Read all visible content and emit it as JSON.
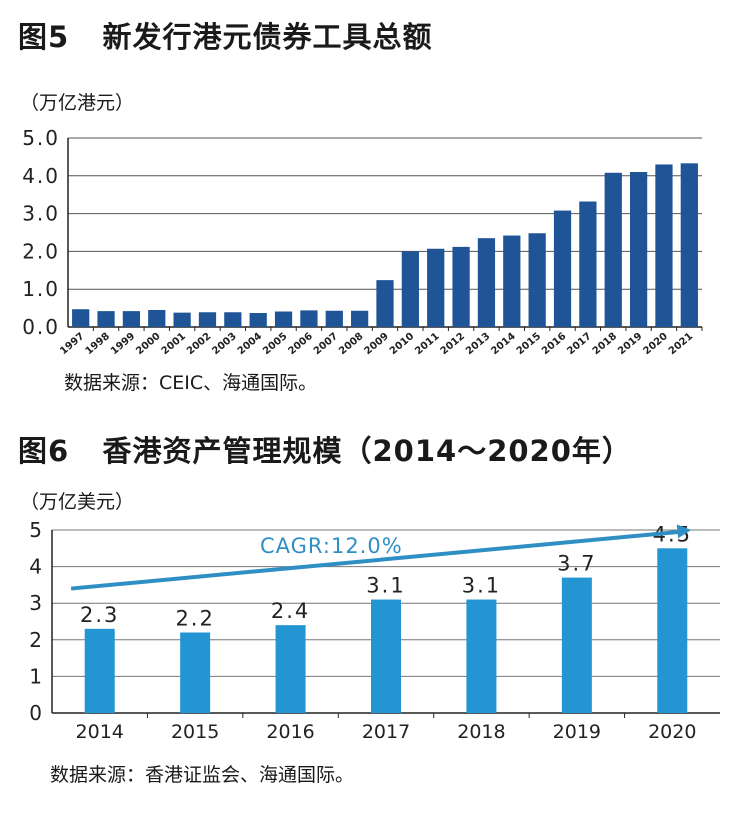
{
  "figures": [
    {
      "number": "图5",
      "title": "新发行港元债券工具总额",
      "unit": "（万亿港元）",
      "source": "数据来源：CEIC、海通国际。"
    },
    {
      "number": "图6",
      "title": "香港资产管理规模（2014～2020年）",
      "unit": "（万亿美元）",
      "source": "数据来源：香港证监会、海通国际。"
    }
  ],
  "chart_data": [
    {
      "type": "bar",
      "title": "新发行港元债券工具总额",
      "ylabel": "万亿港元",
      "categories": [
        "1997",
        "1998",
        "1999",
        "2000",
        "2001",
        "2002",
        "2003",
        "2004",
        "2005",
        "2006",
        "2007",
        "2008",
        "2009",
        "2010",
        "2011",
        "2012",
        "2013",
        "2014",
        "2015",
        "2016",
        "2017",
        "2018",
        "2019",
        "2020",
        "2021"
      ],
      "values": [
        0.47,
        0.42,
        0.42,
        0.45,
        0.38,
        0.39,
        0.39,
        0.37,
        0.41,
        0.44,
        0.43,
        0.43,
        1.24,
        2.0,
        2.07,
        2.12,
        2.35,
        2.42,
        2.48,
        3.08,
        3.32,
        4.08,
        4.1,
        4.3,
        4.33
      ],
      "yticks": [
        "0.0",
        "1.0",
        "2.0",
        "3.0",
        "4.0",
        "5.0"
      ],
      "ylim": [
        0,
        5
      ],
      "grid": true,
      "color": "#1f5597"
    },
    {
      "type": "bar",
      "title": "香港资产管理规模（2014～2020年）",
      "ylabel": "万亿美元",
      "categories": [
        "2014",
        "2015",
        "2016",
        "2017",
        "2018",
        "2019",
        "2020"
      ],
      "values": [
        2.3,
        2.2,
        2.4,
        3.1,
        3.1,
        3.7,
        4.5
      ],
      "data_labels": [
        "2.3",
        "2.2",
        "2.4",
        "3.1",
        "3.1",
        "3.7",
        "4.5"
      ],
      "yticks": [
        "0",
        "1",
        "2",
        "3",
        "4",
        "5"
      ],
      "ylim": [
        0,
        5
      ],
      "grid": true,
      "color": "#2495d3",
      "annotation": {
        "text": "CAGR:12.0%",
        "arrow_from": [
          -0.3,
          3.4
        ],
        "arrow_to": [
          6.2,
          5.0
        ],
        "color": "#2f8fc4"
      }
    }
  ]
}
